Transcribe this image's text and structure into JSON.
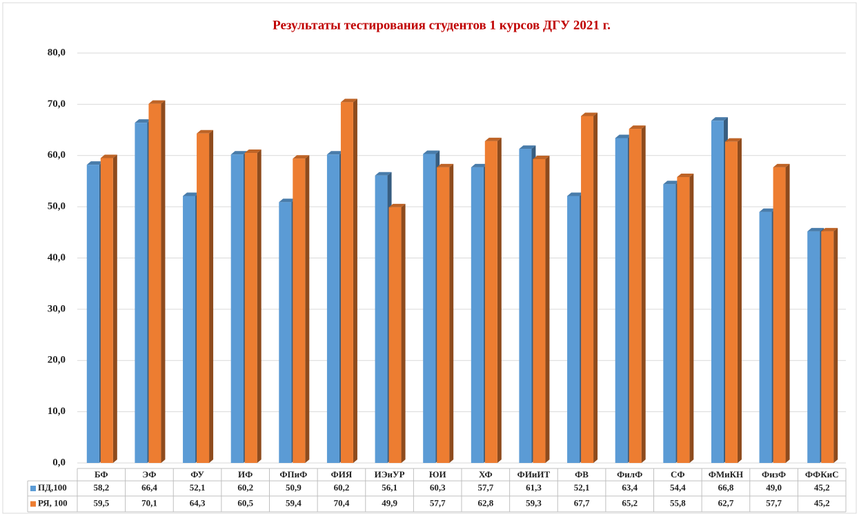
{
  "chart_data": {
    "type": "bar",
    "title": "Результаты тестирования студентов 1 курсов ДГУ 2021 г.",
    "categories": [
      "БФ",
      "ЭФ",
      "ФУ",
      "ИФ",
      "ФПиФ",
      "ФИЯ",
      "ИЭиУР",
      "ЮИ",
      "ХФ",
      "ФИиИТ",
      "ФВ",
      "ФилФ",
      "СФ",
      "ФМиКН",
      "ФизФ",
      "ФФКиС"
    ],
    "series": [
      {
        "name": "ПД,100",
        "color": "#5b9bd5",
        "values": [
          58.2,
          66.4,
          52.1,
          60.2,
          50.9,
          60.2,
          56.1,
          60.3,
          57.7,
          61.3,
          52.1,
          63.4,
          54.4,
          66.8,
          49.0,
          45.2
        ],
        "value_labels": [
          "58,2",
          "66,4",
          "52,1",
          "60,2",
          "50,9",
          "60,2",
          "56,1",
          "60,3",
          "57,7",
          "61,3",
          "52,1",
          "63,4",
          "54,4",
          "66,8",
          "49,0",
          "45,2"
        ]
      },
      {
        "name": "РЯ, 100",
        "color": "#ed7d31",
        "values": [
          59.5,
          70.1,
          64.3,
          60.5,
          59.4,
          70.4,
          49.9,
          57.7,
          62.8,
          59.3,
          67.7,
          65.2,
          55.8,
          62.7,
          57.7,
          45.2
        ],
        "value_labels": [
          "59,5",
          "70,1",
          "64,3",
          "60,5",
          "59,4",
          "70,4",
          "49,9",
          "57,7",
          "62,8",
          "59,3",
          "67,7",
          "65,2",
          "55,8",
          "62,7",
          "57,7",
          "45,2"
        ]
      }
    ],
    "ylim": [
      0,
      80
    ],
    "yticks": [
      {
        "value": 0,
        "label": "0,0"
      },
      {
        "value": 10,
        "label": "10,0"
      },
      {
        "value": 20,
        "label": "20,0"
      },
      {
        "value": 30,
        "label": "30,0"
      },
      {
        "value": 40,
        "label": "40,0"
      },
      {
        "value": 50,
        "label": "50,0"
      },
      {
        "value": 60,
        "label": "60,0"
      },
      {
        "value": 70,
        "label": "70,0"
      },
      {
        "value": 80,
        "label": "80,0"
      }
    ],
    "grid": true
  }
}
